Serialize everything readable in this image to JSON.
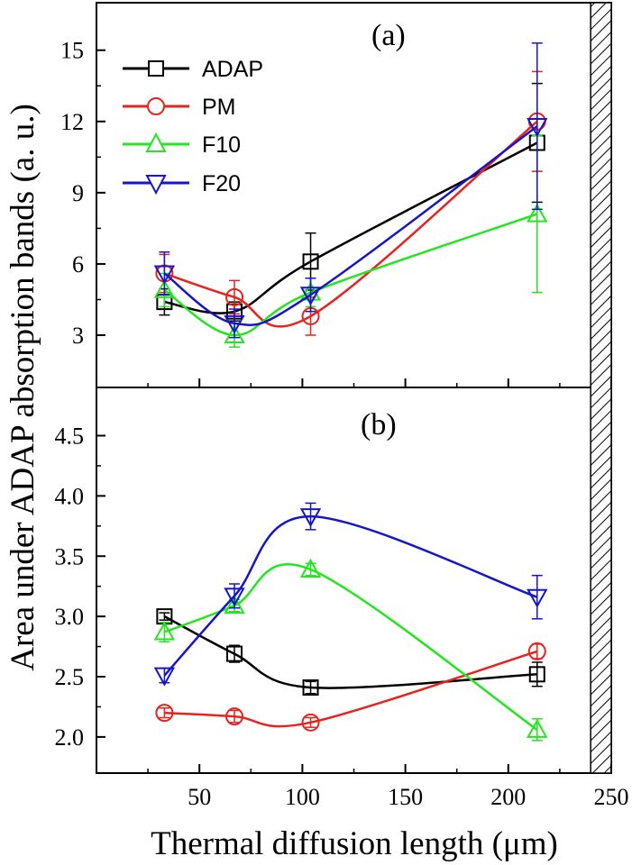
{
  "chart_data": {
    "type": "line",
    "xlabel": "Thermal diffusion length (μm)",
    "ylabel": "Area under ADAP absorption bands (a. u.)",
    "xlim": [
      0,
      250
    ],
    "x_ticks": [
      50,
      100,
      150,
      200,
      250
    ],
    "hatched_region_x": [
      240,
      250
    ],
    "x": [
      33,
      67,
      104,
      214
    ],
    "colors": {
      "ADAP": "#000000",
      "PM": "#e8221f",
      "F10": "#22e61e",
      "F20": "#1616c8"
    },
    "legend": [
      {
        "name": "ADAP",
        "marker": "square"
      },
      {
        "name": "PM",
        "marker": "circle"
      },
      {
        "name": "F10",
        "marker": "triangle-up"
      },
      {
        "name": "F20",
        "marker": "triangle-down"
      }
    ],
    "panels": [
      {
        "label": "(a)",
        "ylim": [
          0.8,
          17.0
        ],
        "y_ticks": [
          3,
          6,
          9,
          12,
          15
        ],
        "y_tick_labels": [
          "3",
          "6",
          "9",
          "12",
          "15"
        ],
        "series": [
          {
            "name": "ADAP",
            "values": [
              4.4,
              4.0,
              6.1,
              11.1
            ],
            "errors": [
              0.55,
              0.4,
              1.2,
              2.5
            ]
          },
          {
            "name": "PM",
            "values": [
              5.6,
              4.6,
              3.8,
              12.0
            ],
            "errors": [
              0.8,
              0.7,
              0.8,
              2.1
            ]
          },
          {
            "name": "F10",
            "values": [
              4.9,
              3.0,
              4.8,
              8.1
            ],
            "errors": [
              0.7,
              0.5,
              0.6,
              3.3
            ]
          },
          {
            "name": "F20",
            "values": [
              5.6,
              3.5,
              4.7,
              11.8
            ],
            "errors": [
              0.9,
              0.6,
              0.7,
              3.5
            ]
          }
        ]
      },
      {
        "label": "(b)",
        "ylim": [
          1.7,
          4.9
        ],
        "y_ticks": [
          2.0,
          2.5,
          3.0,
          3.5,
          4.0,
          4.5
        ],
        "y_tick_labels": [
          "2.0",
          "2.5",
          "3.0",
          "3.5",
          "4.0",
          "4.5"
        ],
        "series": [
          {
            "name": "ADAP",
            "values": [
              3.0,
              2.69,
              2.41,
              2.52
            ],
            "errors": [
              0.03,
              0.07,
              0.05,
              0.1
            ]
          },
          {
            "name": "PM",
            "values": [
              2.2,
              2.17,
              2.12,
              2.71
            ],
            "errors": [
              0.04,
              0.05,
              0.04,
              0.06
            ]
          },
          {
            "name": "F10",
            "values": [
              2.87,
              3.09,
              3.39,
              2.06
            ],
            "errors": [
              0.08,
              0.05,
              0.05,
              0.09
            ]
          },
          {
            "name": "F20",
            "values": [
              2.51,
              3.17,
              3.83,
              3.16
            ],
            "errors": [
              0.06,
              0.1,
              0.11,
              0.18
            ]
          }
        ]
      }
    ]
  }
}
